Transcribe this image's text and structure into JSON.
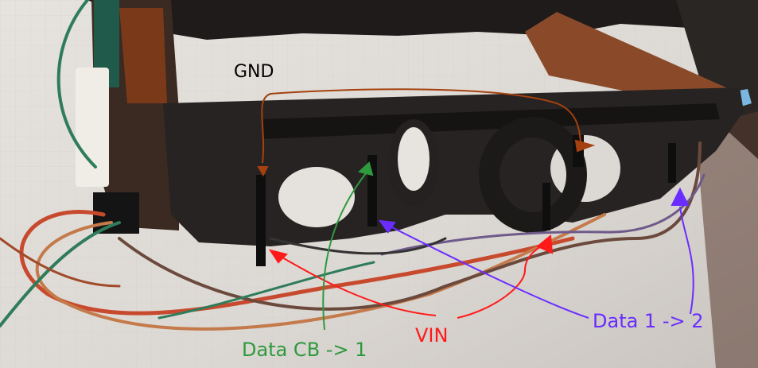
{
  "labels": {
    "gnd": {
      "text": "GND",
      "color": "#000000"
    },
    "vin": {
      "text": "VIN",
      "color": "#ff1a1a"
    },
    "data12": {
      "text": "Data 1 -> 2",
      "color": "#6a2cff"
    },
    "datacb": {
      "text": "Data CB -> 1",
      "color": "#2e9a3e"
    }
  },
  "arrow_colors": {
    "gnd": "#a5410f",
    "vin": "#ff1a1a",
    "data12": "#6a2cff",
    "datacb": "#2e9a3e"
  },
  "photo_palette": {
    "paper": "#dedbd6",
    "shadow": "#b9b3ad",
    "plastic": "#262322",
    "plastic_dark": "#171514",
    "board": "#7b3d20",
    "wire_red": "#c84a2e",
    "wire_orange": "#c47a4a",
    "wire_brown": "#6b4a3d",
    "wire_green": "#2f7c5a",
    "wire_purple": "#6e5a8a"
  }
}
